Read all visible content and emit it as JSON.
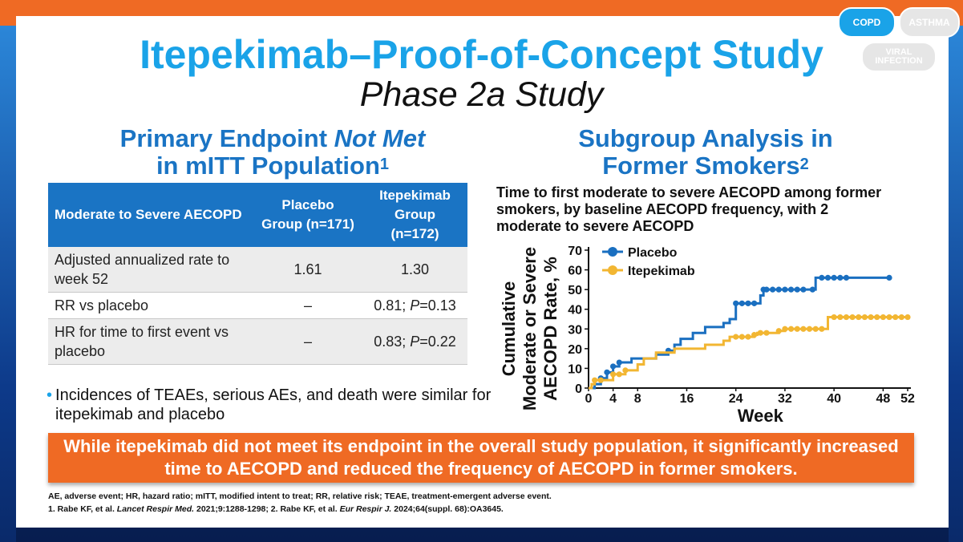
{
  "tags": {
    "copd": "COPD",
    "asthma": "ASTHMA",
    "viral_line1": "VIRAL",
    "viral_line2": "INFECTION"
  },
  "title": "Itepekimab–Proof-of-Concept Study",
  "subtitle": "Phase 2a Study",
  "left_heading": {
    "line1_a": "Primary Endpoint ",
    "line1_b": "Not Met",
    "line2": "in mITT Population",
    "sup": "1"
  },
  "right_heading": {
    "line1": "Subgroup Analysis in",
    "line2": "Former Smokers",
    "sup": "2"
  },
  "table": {
    "headers": [
      "Moderate to Severe AECOPD",
      "Placebo Group (n=171)",
      "Itepekimab Group (n=172)"
    ],
    "rows": [
      {
        "label": "Adjusted annualized rate to week 52",
        "placebo": "1.61",
        "itepekimab": "1.30"
      },
      {
        "label": "RR vs placebo",
        "placebo": "–",
        "itepekimab_a": "0.81; ",
        "itepekimab_p": "P",
        "itepekimab_b": "=0.13"
      },
      {
        "label": "HR for time to first event vs placebo",
        "placebo": "–",
        "itepekimab_a": "0.83; ",
        "itepekimab_p": "P",
        "itepekimab_b": "=0.22"
      }
    ]
  },
  "bullet": "Incidences of TEAEs, serious AEs, and death were similar for itepekimab and placebo",
  "chart_title": "Time to first moderate to severe AECOPD among former smokers, by baseline AECOPD frequency, with 2 moderate to severe AECOPD",
  "banner": "While itepekimab did not meet its endpoint in the overall study population, it significantly increased time to AECOPD and reduced the frequency of AECOPD in former smokers.",
  "footnote1": "AE, adverse event; HR, hazard ratio; mITT, modified intent to treat; RR, relative risk; TEAE, treatment-emergent adverse event.",
  "footnote2": {
    "a": "1. Rabe KF, et al. ",
    "b": "Lancet Respir Med.",
    "c": " 2021;9:1288-1298; 2. Rabe KF, et al. ",
    "d": "Eur Respir J.",
    "e": " 2024;64(suppl. 68):OA3645."
  },
  "chart_data": {
    "type": "line",
    "title": "Time to first moderate to severe AECOPD among former smokers, by baseline AECOPD frequency, with 2 moderate to severe AECOPD",
    "xlabel": "Week",
    "ylabel_lines": [
      "Cumulative",
      "Moderate or Severe",
      "AECOPD Rate, %"
    ],
    "xlim": [
      0,
      52
    ],
    "ylim": [
      0,
      70
    ],
    "xticks": [
      0,
      4,
      8,
      16,
      24,
      32,
      40,
      48,
      52
    ],
    "yticks": [
      0,
      10,
      20,
      30,
      40,
      50,
      60,
      70
    ],
    "legend_position": "top-left",
    "series": [
      {
        "name": "Placebo",
        "color": "#1a6fc0",
        "step": true,
        "points": [
          [
            0,
            0
          ],
          [
            1,
            2
          ],
          [
            2,
            5
          ],
          [
            3,
            8
          ],
          [
            4,
            11
          ],
          [
            5,
            13
          ],
          [
            7,
            15
          ],
          [
            11,
            17
          ],
          [
            13,
            19
          ],
          [
            14,
            22
          ],
          [
            15,
            25
          ],
          [
            17,
            28
          ],
          [
            19,
            31
          ],
          [
            22,
            33
          ],
          [
            23,
            35
          ],
          [
            24,
            38
          ],
          [
            24,
            43
          ],
          [
            27,
            43
          ],
          [
            28,
            47
          ],
          [
            28.5,
            50
          ],
          [
            33,
            50
          ],
          [
            36.5,
            50
          ],
          [
            37,
            56
          ],
          [
            49,
            56
          ]
        ],
        "markers": [
          2,
          3,
          4,
          5,
          13,
          24,
          25,
          26,
          27,
          28.5,
          29,
          30,
          31,
          32,
          33,
          34,
          35,
          36.5,
          38,
          39,
          40,
          41,
          42,
          49
        ]
      },
      {
        "name": "Itepekimab",
        "color": "#f2b632",
        "step": true,
        "points": [
          [
            0,
            0
          ],
          [
            0.5,
            2
          ],
          [
            1,
            4
          ],
          [
            3,
            4
          ],
          [
            4,
            7
          ],
          [
            6,
            9
          ],
          [
            8,
            12
          ],
          [
            9,
            15
          ],
          [
            11,
            18
          ],
          [
            14,
            20
          ],
          [
            19,
            22
          ],
          [
            22,
            24
          ],
          [
            23,
            26
          ],
          [
            27,
            27
          ],
          [
            27.5,
            28
          ],
          [
            31,
            29
          ],
          [
            32,
            30
          ],
          [
            38,
            30
          ],
          [
            39,
            36
          ],
          [
            52,
            36
          ]
        ],
        "markers": [
          1,
          2,
          4,
          5,
          6,
          24,
          25,
          26,
          27,
          28,
          29,
          31,
          32,
          33,
          34,
          35,
          36,
          37,
          38,
          40,
          41,
          42,
          43,
          44,
          45,
          46,
          47,
          48,
          49,
          50,
          51,
          52
        ]
      }
    ]
  }
}
